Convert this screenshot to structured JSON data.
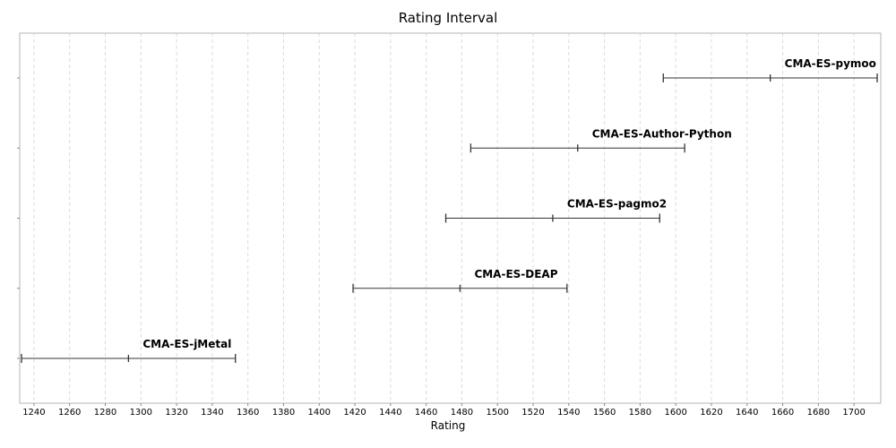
{
  "chart_data": {
    "type": "interval",
    "title": "Rating Interval",
    "xlabel": "Rating",
    "ylabel": "",
    "xlim": [
      1232,
      1715
    ],
    "x_ticks": [
      1240,
      1260,
      1280,
      1300,
      1320,
      1340,
      1360,
      1380,
      1400,
      1420,
      1440,
      1460,
      1480,
      1500,
      1520,
      1540,
      1560,
      1580,
      1600,
      1620,
      1640,
      1660,
      1680,
      1700
    ],
    "grid": "vertical-dashed",
    "series": [
      {
        "name": "CMA-ES-pymoo",
        "low": 1593,
        "mid": 1653,
        "high": 1713
      },
      {
        "name": "CMA-ES-Author-Python",
        "low": 1485,
        "mid": 1545,
        "high": 1605
      },
      {
        "name": "CMA-ES-pagmo2",
        "low": 1471,
        "mid": 1531,
        "high": 1591
      },
      {
        "name": "CMA-ES-DEAP",
        "low": 1419,
        "mid": 1479,
        "high": 1539
      },
      {
        "name": "CMA-ES-jMetal",
        "low": 1233,
        "mid": 1293,
        "high": 1353
      }
    ]
  }
}
